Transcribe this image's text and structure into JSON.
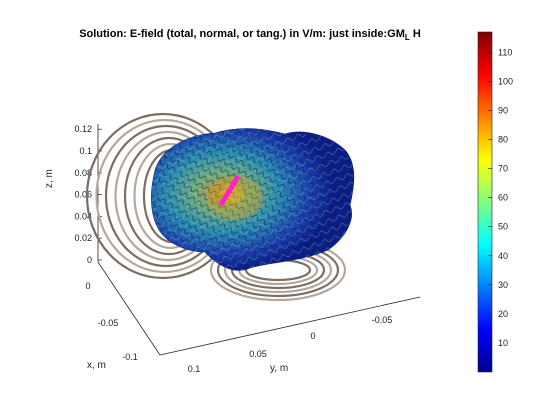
{
  "chart_data": {
    "type": "surface3d",
    "title_main": "Solution: E-field (total, normal, or tang.) in V/m: just inside:GM",
    "title_sub": "L",
    "title_tail": "H",
    "zlabel": "z, m",
    "xlabel": "x, m",
    "ylabel": "y, m",
    "z_ticks": [
      "0",
      "0.02",
      "0.04",
      "0.06",
      "0.08",
      "0.1",
      "0.12"
    ],
    "x_ticks": [
      "0",
      "-0.05",
      "-0.1"
    ],
    "y_ticks": [
      "0.1",
      "0.05",
      "0",
      "-0.05"
    ],
    "colorbar": {
      "ticks": [
        "10",
        "20",
        "30",
        "40",
        "50",
        "60",
        "70",
        "80",
        "90",
        "100",
        "110"
      ],
      "min": 0,
      "max": 117,
      "colormap": "jet"
    }
  },
  "colors": {
    "coil": "#b5a89a",
    "coil_dark": "#7d6e62",
    "marker": "#ff22cc"
  }
}
